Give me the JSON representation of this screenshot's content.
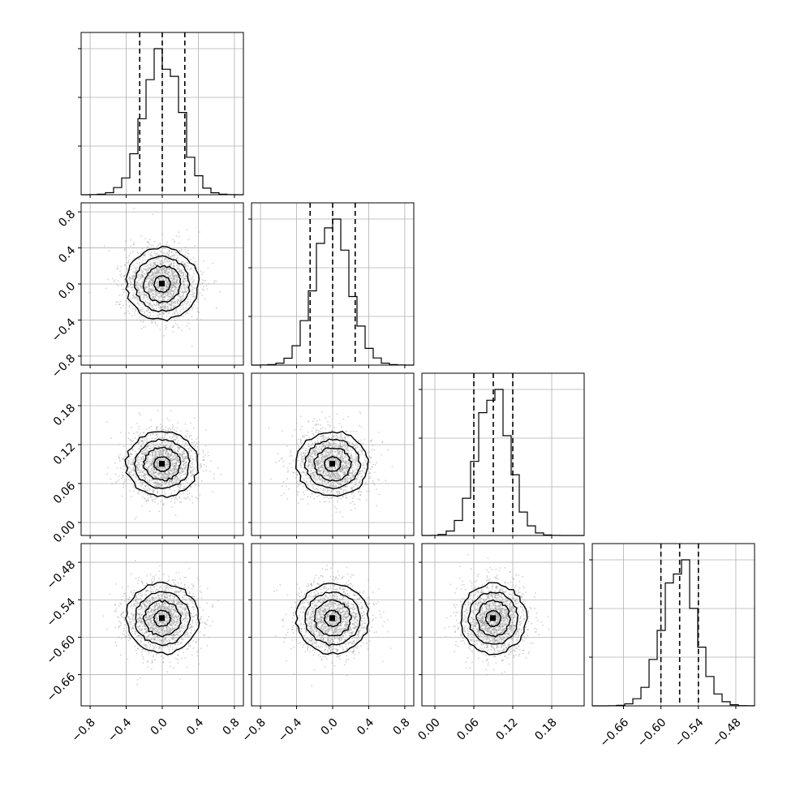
{
  "chart_data": {
    "type": "corner",
    "grid": true,
    "colors": {
      "line": "#000000",
      "grid": "#b0b0b0",
      "scatter": "#9a9a9a"
    },
    "params": [
      {
        "range": [
          -0.9,
          0.9
        ],
        "mean": 0.0,
        "sigma": 0.2,
        "quantiles": [
          -0.25,
          0.0,
          0.25
        ],
        "ticks": [
          -0.8,
          -0.4,
          0.0,
          0.4,
          0.8
        ],
        "tick_labels": [
          "−0.8",
          "−0.4",
          "0.0",
          "0.4",
          "0.8"
        ]
      },
      {
        "range": [
          -0.9,
          0.9
        ],
        "mean": 0.0,
        "sigma": 0.2,
        "quantiles": [
          -0.25,
          0.0,
          0.25
        ],
        "ticks": [
          -0.8,
          -0.4,
          0.0,
          0.4,
          0.8
        ],
        "tick_labels": [
          "−0.8",
          "−0.4",
          "0.0",
          "0.4",
          "0.8"
        ]
      },
      {
        "range": [
          -0.02,
          0.23
        ],
        "mean": 0.09,
        "sigma": 0.025,
        "quantiles": [
          0.06,
          0.09,
          0.12
        ],
        "ticks": [
          0.0,
          0.06,
          0.12,
          0.18
        ],
        "tick_labels": [
          "0.00",
          "0.06",
          "0.12",
          "0.18"
        ]
      },
      {
        "range": [
          -0.71,
          -0.45
        ],
        "mean": -0.57,
        "sigma": 0.028,
        "quantiles": [
          -0.6,
          -0.57,
          -0.54
        ],
        "ticks": [
          -0.66,
          -0.6,
          -0.54,
          -0.48
        ],
        "tick_labels": [
          "−0.66",
          "−0.60",
          "−0.54",
          "−0.48"
        ]
      }
    ]
  }
}
